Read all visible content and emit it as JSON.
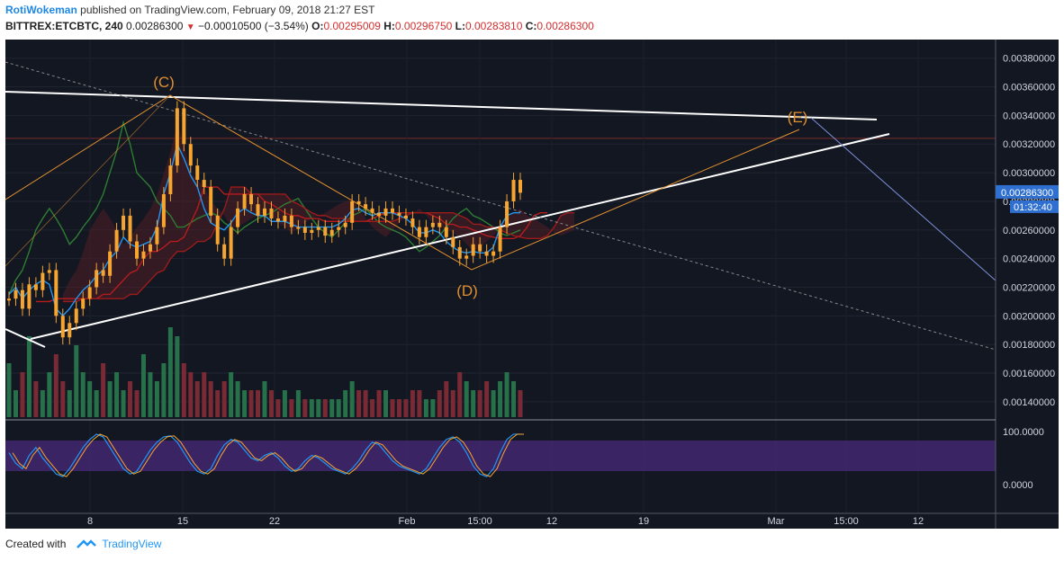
{
  "header": {
    "author": "RotiWokeman",
    "published": "published on TradingView.com, February 09, 2018 21:27 EST",
    "symbol": "BITTREX:ETCBTC, 240",
    "last": "0.00286300",
    "change": "−0.00010500 (−3.54%)",
    "o_label": "O:",
    "o": "0.00295009",
    "h_label": "H:",
    "h": "0.00296750",
    "l_label": "L:",
    "l": "0.00283810",
    "c_label": "C:",
    "c": "0.00286300"
  },
  "footer": {
    "created_with": "Created with",
    "brand": "TradingView"
  },
  "colors": {
    "background": "#131722",
    "candle": "#f7a531",
    "tenkan": "#2196f3",
    "kijun": "#b71c1c",
    "span": "#2e7d32",
    "trendline": "#ffffff",
    "wave": "#e09030",
    "volume_up": "#26704a",
    "volume_down": "#7a2a35",
    "stoch_band": "#4a2a7a",
    "price_tag": "#2e6fd0"
  },
  "chart_data": {
    "type": "line",
    "price_axis": {
      "ticks": [
        "0.00380000",
        "0.00360000",
        "0.00340000",
        "0.00320000",
        "0.00300000",
        "0.00280000",
        "0.00260000",
        "0.00240000",
        "0.00220000",
        "0.00200000",
        "0.00180000",
        "0.00160000",
        "0.00140000"
      ],
      "tick_values": [
        0.0038,
        0.0036,
        0.0034,
        0.0032,
        0.003,
        0.0028,
        0.0026,
        0.0024,
        0.0022,
        0.002,
        0.0018,
        0.0016,
        0.0014
      ],
      "ylim": [
        0.00128,
        0.00393
      ],
      "price_tag": "0.00286300",
      "countdown": "01:32:40",
      "last_price": 0.002863
    },
    "stoch_axis": {
      "ticks": [
        "100.0000",
        "0.0000"
      ]
    },
    "time_axis": {
      "ticks": [
        "8",
        "15",
        "22",
        "Feb",
        "15:00",
        "12",
        "19",
        "Mar",
        "15:00",
        "12"
      ]
    },
    "wave_labels": [
      "(C)",
      "(D)",
      "(E)"
    ],
    "wave_points": [
      [
        0.0027,
        0.0029
      ],
      [
        0.00345,
        0.0035
      ],
      [
        0.0023,
        0.0026
      ],
      [
        0.00325,
        0.0034
      ]
    ],
    "price_series": [
      0.00212,
      0.00218,
      0.00205,
      0.00222,
      0.00218,
      0.0023,
      0.00232,
      0.002,
      0.00185,
      0.00195,
      0.00205,
      0.00212,
      0.0022,
      0.00232,
      0.00228,
      0.00245,
      0.0026,
      0.0027,
      0.00252,
      0.0024,
      0.00245,
      0.0025,
      0.00262,
      0.00285,
      0.00305,
      0.00345,
      0.0032,
      0.00305,
      0.00295,
      0.0029,
      0.0027,
      0.0025,
      0.0024,
      0.00262,
      0.00275,
      0.00285,
      0.00278,
      0.0027,
      0.00275,
      0.00268,
      0.00266,
      0.0027,
      0.00262,
      0.00262,
      0.00258,
      0.0026,
      0.00262,
      0.00256,
      0.0026,
      0.00262,
      0.00265,
      0.0028,
      0.00278,
      0.00275,
      0.00272,
      0.0027,
      0.00275,
      0.00272,
      0.0027,
      0.00268,
      0.00262,
      0.00255,
      0.00262,
      0.00265,
      0.00262,
      0.00255,
      0.00248,
      0.0024,
      0.00242,
      0.0025,
      0.00245,
      0.00242,
      0.00245,
      0.00262,
      0.0028,
      0.00295,
      0.00286
    ],
    "tenkan_series": [
      0.00215,
      0.0022,
      0.00212,
      0.00218,
      0.00222,
      0.00225,
      0.00222,
      0.00205,
      0.002,
      0.00205,
      0.00212,
      0.00218,
      0.00222,
      0.00228,
      0.00232,
      0.0024,
      0.00245,
      0.00255,
      0.0025,
      0.00248,
      0.0025,
      0.00252,
      0.00262,
      0.00285,
      0.003,
      0.0032,
      0.0031,
      0.00298,
      0.0029,
      0.00275,
      0.00265,
      0.00262,
      0.0026,
      0.00265,
      0.00272,
      0.00275,
      0.00272,
      0.0027,
      0.0027,
      0.00266,
      0.00266,
      0.00266,
      0.00264,
      0.00262,
      0.00262,
      0.00262,
      0.00262,
      0.00262,
      0.00262,
      0.00264,
      0.00268,
      0.00274,
      0.00275,
      0.00272,
      0.0027,
      0.00272,
      0.00272,
      0.00272,
      0.0027,
      0.00268,
      0.00264,
      0.00258,
      0.00258,
      0.0026,
      0.00258,
      0.00252,
      0.00248,
      0.00245,
      0.00244,
      0.00245,
      0.00244,
      0.00244,
      0.00248,
      0.00262,
      0.0027,
      0.00272,
      0.00272
    ],
    "kijun_series": [
      0.0021,
      0.0021,
      0.0021,
      0.00212,
      0.00212,
      0.00212,
      0.00212,
      0.00212,
      0.00212,
      0.00212,
      0.00215,
      0.00215,
      0.0022,
      0.00225,
      0.0023,
      0.00232,
      0.0024,
      0.00245,
      0.00245,
      0.00248,
      0.00252,
      0.00252,
      0.00255,
      0.00265,
      0.00275,
      0.0029,
      0.0029,
      0.0029,
      0.00285,
      0.00285,
      0.00285,
      0.00285,
      0.00285,
      0.00285,
      0.0028,
      0.00278,
      0.00275,
      0.00272,
      0.0027,
      0.0027,
      0.00268,
      0.00268,
      0.00268,
      0.00266,
      0.00266,
      0.00266,
      0.00266,
      0.00266,
      0.00266,
      0.00266,
      0.00268,
      0.0027,
      0.00272,
      0.00272,
      0.00272,
      0.00272,
      0.00272,
      0.00272,
      0.00272,
      0.0027,
      0.00268,
      0.00264,
      0.00264,
      0.00262,
      0.00262,
      0.0026,
      0.00258,
      0.00256,
      0.00255,
      0.00254,
      0.00254,
      0.00254,
      0.00256,
      0.00262,
      0.0027,
      0.00272,
      0.00272
    ],
    "span_series": [
      0.00215,
      0.00225,
      0.00232,
      0.00245,
      0.0026,
      0.00268,
      0.00275,
      0.00268,
      0.0026,
      0.0025,
      0.00255,
      0.00262,
      0.00268,
      0.00275,
      0.00285,
      0.003,
      0.00315,
      0.00335,
      0.0032,
      0.003,
      0.00295,
      0.0029,
      0.0028,
      0.00275,
      0.0027,
      0.00262,
      0.00262,
      0.00265,
      0.00268,
      0.0027,
      0.00272,
      0.0027,
      0.00265,
      0.00262,
      0.00258,
      0.00262,
      0.00265,
      0.00268,
      0.0027,
      0.00272,
      0.00275,
      0.00278,
      0.0028,
      0.00282,
      0.00275,
      0.00268,
      0.00262,
      0.00258,
      0.00255,
      0.0026,
      0.00265,
      0.0027,
      0.00272,
      0.00275,
      0.0027,
      0.00265,
      0.00262,
      0.0026,
      0.00258,
      0.00255,
      0.0025,
      0.00245,
      0.00248,
      0.00252,
      0.00256,
      0.00262,
      0.00268,
      0.00272,
      0.00275,
      0.0027,
      0.00268,
      0.00265,
      0.00262,
      0.00258,
      0.00256,
      0.00258,
      0.0026
    ],
    "volume_series": [
      0.6,
      0.3,
      0.5,
      0.9,
      0.4,
      0.3,
      0.5,
      0.7,
      0.4,
      0.3,
      0.8,
      0.5,
      0.4,
      0.3,
      0.6,
      0.4,
      0.5,
      0.3,
      0.4,
      0.3,
      0.7,
      0.5,
      0.4,
      0.6,
      1.0,
      0.9,
      0.6,
      0.5,
      0.4,
      0.5,
      0.4,
      0.3,
      0.4,
      0.5,
      0.4,
      0.3,
      0.3,
      0.3,
      0.4,
      0.3,
      0.2,
      0.3,
      0.2,
      0.3,
      0.2,
      0.2,
      0.2,
      0.2,
      0.2,
      0.2,
      0.3,
      0.4,
      0.3,
      0.3,
      0.2,
      0.3,
      0.3,
      0.2,
      0.2,
      0.2,
      0.3,
      0.3,
      0.2,
      0.2,
      0.3,
      0.4,
      0.3,
      0.5,
      0.4,
      0.3,
      0.3,
      0.4,
      0.3,
      0.4,
      0.5,
      0.4,
      0.3
    ],
    "stoch_series": [
      60,
      40,
      30,
      55,
      70,
      50,
      35,
      20,
      15,
      30,
      50,
      70,
      85,
      95,
      90,
      70,
      50,
      30,
      20,
      25,
      45,
      65,
      80,
      90,
      92,
      80,
      60,
      40,
      25,
      20,
      30,
      55,
      75,
      85,
      80,
      65,
      50,
      45,
      55,
      60,
      50,
      35,
      25,
      30,
      45,
      55,
      50,
      40,
      30,
      25,
      20,
      30,
      45,
      65,
      80,
      75,
      60,
      45,
      35,
      30,
      25,
      20,
      30,
      50,
      70,
      85,
      90,
      80,
      60,
      35,
      20,
      15,
      30,
      60,
      85,
      95,
      95
    ]
  }
}
